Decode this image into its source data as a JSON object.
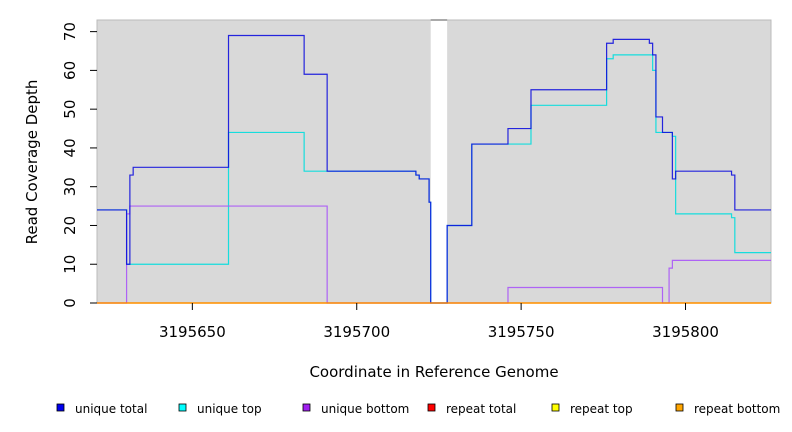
{
  "chart_data": {
    "type": "line",
    "xlabel": "Coordinate in Reference Genome",
    "ylabel": "Read Coverage Depth",
    "xlim": [
      3195621,
      3195826
    ],
    "ylim": [
      0,
      73
    ],
    "xticks": [
      3195650,
      3195700,
      3195750,
      3195800
    ],
    "xtick_labels": [
      "3195650",
      "3195700",
      "3195750",
      "3195800"
    ],
    "yticks": [
      0,
      10,
      20,
      30,
      40,
      50,
      60,
      70
    ],
    "ytick_labels": [
      "0",
      "10",
      "20",
      "30",
      "40",
      "50",
      "60",
      "70"
    ],
    "gap": {
      "x": [
        3195722.5,
        3195727.5
      ]
    },
    "grid": false,
    "legend_position": "bottom",
    "series": [
      {
        "name": "repeat top",
        "color": "#ffff00",
        "x": [
          3195621,
          3195826
        ],
        "y": [
          0,
          0
        ]
      },
      {
        "name": "unique top",
        "color": "#00dddd",
        "x": [
          3195621,
          3195630,
          3195631,
          3195661,
          3195684,
          3195691,
          3195718,
          3195719,
          3195721,
          3195722,
          3195722.5,
          3195727.5,
          3195735,
          3195746,
          3195753,
          3195776,
          3195778,
          3195790,
          3195791,
          3195796,
          3195797,
          3195814,
          3195815,
          3195826
        ],
        "y": [
          24,
          10,
          10,
          44,
          34,
          34,
          33,
          32,
          32,
          26,
          0,
          20,
          41,
          41,
          51,
          63,
          64,
          60,
          44,
          43,
          23,
          22,
          13,
          13
        ]
      },
      {
        "name": "unique bottom",
        "color": "#a855f7",
        "x": [
          3195621,
          3195630,
          3195631,
          3195691,
          3195746,
          3195793,
          3195795,
          3195796,
          3195826
        ],
        "y": [
          0,
          23,
          25,
          0,
          4,
          0,
          9,
          11,
          11
        ]
      },
      {
        "name": "unique total",
        "color": "#1010dd",
        "x": [
          3195621,
          3195630,
          3195631,
          3195632,
          3195661,
          3195684,
          3195691,
          3195718,
          3195719,
          3195721,
          3195722,
          3195722.5,
          3195727.5,
          3195735,
          3195746,
          3195753,
          3195776,
          3195778,
          3195789,
          3195790,
          3195791,
          3195793,
          3195796,
          3195797,
          3195814,
          3195815,
          3195826
        ],
        "y": [
          24,
          10,
          33,
          35,
          69,
          59,
          34,
          33,
          32,
          32,
          26,
          0,
          20,
          41,
          45,
          55,
          67,
          68,
          67,
          64,
          48,
          44,
          32,
          34,
          33,
          24,
          24
        ]
      },
      {
        "name": "repeat total",
        "color": "#ff0000",
        "x": [
          3195621,
          3195826
        ],
        "y": [
          0,
          0
        ]
      },
      {
        "name": "repeat bottom",
        "color": "#ffa500",
        "x": [
          3195621,
          3195826
        ],
        "y": [
          0,
          0
        ]
      }
    ],
    "legend": [
      {
        "label": "unique total",
        "color": "#0000ee"
      },
      {
        "label": "unique top",
        "color": "#00ffff"
      },
      {
        "label": "unique bottom",
        "color": "#a020f0"
      },
      {
        "label": "repeat total",
        "color": "#ff0000"
      },
      {
        "label": "repeat top",
        "color": "#ffff00"
      },
      {
        "label": "repeat bottom",
        "color": "#ffa500"
      }
    ]
  }
}
